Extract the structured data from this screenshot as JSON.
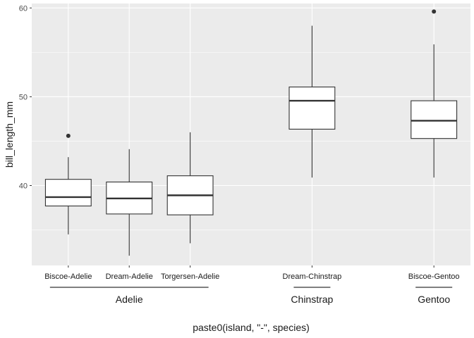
{
  "chart_data": {
    "type": "boxplot",
    "title": "",
    "xlabel": "paste0(island, \"-\", species)",
    "ylabel": "bill_length_mm",
    "ylim": [
      31,
      60.5
    ],
    "y_ticks": [
      40,
      50,
      60
    ],
    "grid": true,
    "categories": [
      "Biscoe-Adelie",
      "Dream-Adelie",
      "Torgersen-Adelie",
      "Dream-Chinstrap",
      "Biscoe-Gentoo"
    ],
    "x_positions": [
      1,
      2,
      3,
      5,
      7
    ],
    "boxes": [
      {
        "label": "Biscoe-Adelie",
        "whisker_low": 34.5,
        "q1": 37.7,
        "median": 38.7,
        "q3": 40.7,
        "whisker_high": 43.2,
        "outliers": [
          45.6
        ]
      },
      {
        "label": "Dream-Adelie",
        "whisker_low": 32.1,
        "q1": 36.8,
        "median": 38.55,
        "q3": 40.4,
        "whisker_high": 44.1,
        "outliers": []
      },
      {
        "label": "Torgersen-Adelie",
        "whisker_low": 33.5,
        "q1": 36.7,
        "median": 38.9,
        "q3": 41.1,
        "whisker_high": 46.0,
        "outliers": []
      },
      {
        "label": "Dream-Chinstrap",
        "whisker_low": 40.9,
        "q1": 46.35,
        "median": 49.55,
        "q3": 51.1,
        "whisker_high": 58.0,
        "outliers": []
      },
      {
        "label": "Biscoe-Gentoo",
        "whisker_low": 40.9,
        "q1": 45.3,
        "median": 47.3,
        "q3": 49.55,
        "whisker_high": 55.9,
        "outliers": [
          59.6
        ]
      }
    ],
    "groups": [
      {
        "label": "Adelie",
        "from": 1,
        "to": 3
      },
      {
        "label": "Chinstrap",
        "from": 5,
        "to": 5
      },
      {
        "label": "Gentoo",
        "from": 7,
        "to": 7
      }
    ],
    "colors": {
      "panel": "#ebebeb",
      "grid": "#ffffff",
      "box_fill": "#ffffff",
      "stroke": "#333333",
      "outlier": "#333333"
    }
  }
}
